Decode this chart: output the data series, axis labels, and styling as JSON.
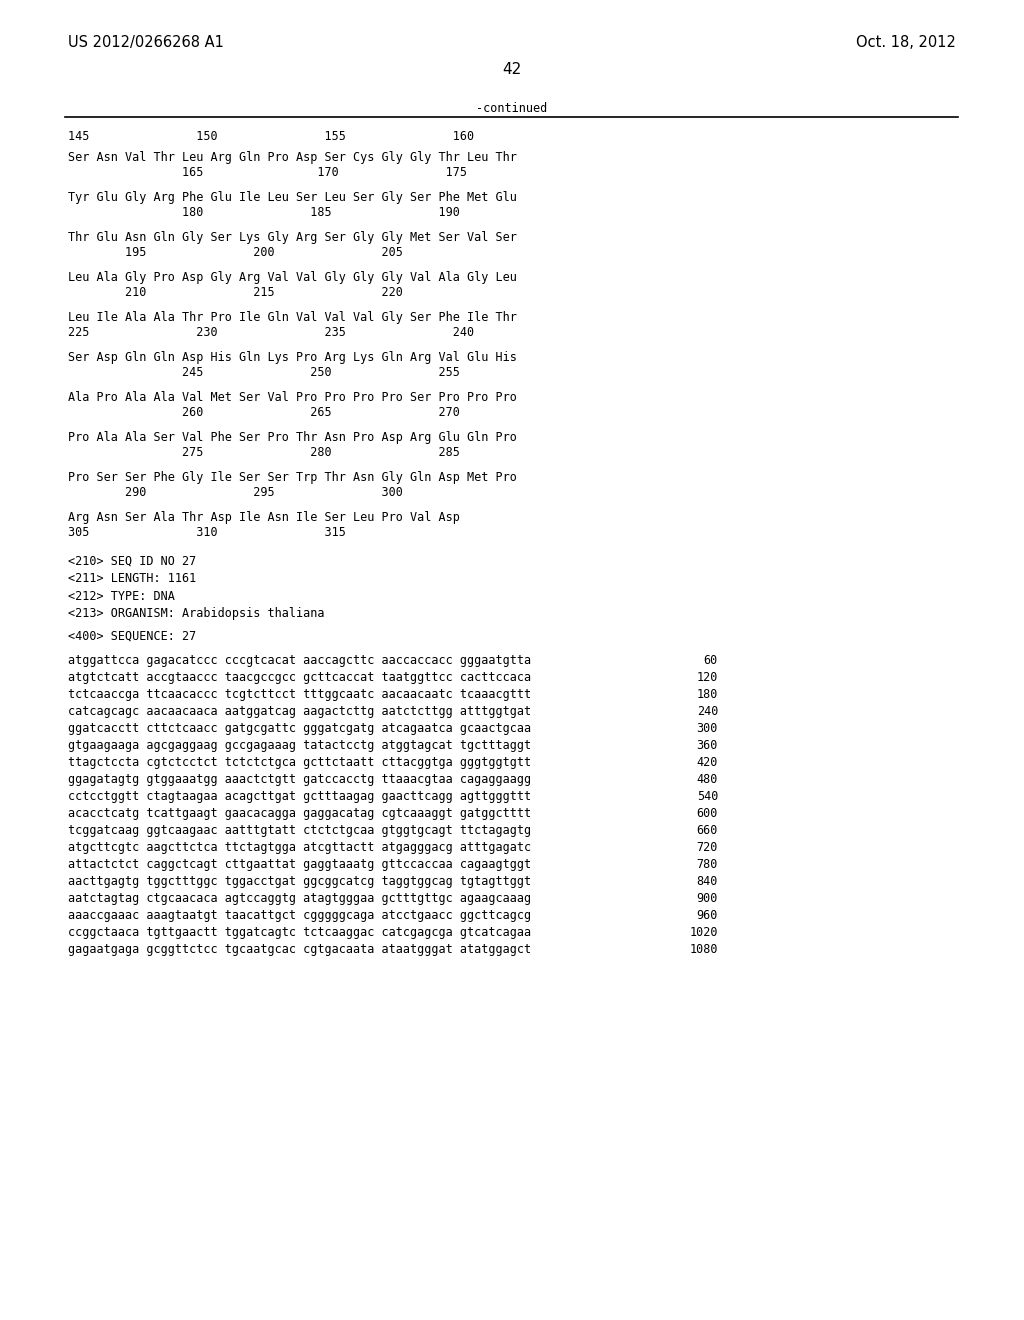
{
  "header_left": "US 2012/0266268 A1",
  "header_right": "Oct. 18, 2012",
  "page_number": "42",
  "continued_label": "-continued",
  "background_color": "#ffffff",
  "text_color": "#000000",
  "font_size_header": 10.5,
  "font_size_body": 8.5,
  "font_size_page": 11,
  "aa_number_line": "145               150               155               160",
  "aa_sequences": [
    {
      "seq": "Ser Asn Val Thr Leu Arg Gln Pro Asp Ser Cys Gly Gly Thr Leu Thr",
      "nums": "                165                170               175"
    },
    {
      "seq": "Tyr Glu Gly Arg Phe Glu Ile Leu Ser Leu Ser Gly Ser Phe Met Glu",
      "nums": "                180               185               190"
    },
    {
      "seq": "Thr Glu Asn Gln Gly Ser Lys Gly Arg Ser Gly Gly Met Ser Val Ser",
      "nums": "        195               200               205"
    },
    {
      "seq": "Leu Ala Gly Pro Asp Gly Arg Val Val Gly Gly Gly Val Ala Gly Leu",
      "nums": "        210               215               220"
    },
    {
      "seq": "Leu Ile Ala Ala Thr Pro Ile Gln Val Val Val Gly Ser Phe Ile Thr",
      "nums": "225               230               235               240"
    },
    {
      "seq": "Ser Asp Gln Gln Asp His Gln Lys Pro Arg Lys Gln Arg Val Glu His",
      "nums": "                245               250               255"
    },
    {
      "seq": "Ala Pro Ala Ala Val Met Ser Val Pro Pro Pro Pro Ser Pro Pro Pro",
      "nums": "                260               265               270"
    },
    {
      "seq": "Pro Ala Ala Ser Val Phe Ser Pro Thr Asn Pro Asp Arg Glu Gln Pro",
      "nums": "                275               280               285"
    },
    {
      "seq": "Pro Ser Ser Phe Gly Ile Ser Ser Trp Thr Asn Gly Gln Asp Met Pro",
      "nums": "        290               295               300"
    },
    {
      "seq": "Arg Asn Ser Ala Thr Asp Ile Asn Ile Ser Leu Pro Val Asp",
      "nums": "305               310               315"
    }
  ],
  "seq_info": [
    "<210> SEQ ID NO 27",
    "<211> LENGTH: 1161",
    "<212> TYPE: DNA",
    "<213> ORGANISM: Arabidopsis thaliana"
  ],
  "seq_label": "<400> SEQUENCE: 27",
  "dna_lines": [
    {
      "seq": "atggattcca gagacatccc cccgtcacat aaccagcttc aaccaccacc gggaatgtta",
      "num": "60"
    },
    {
      "seq": "atgtctcatt accgtaaccc taacgccgcc gcttcaccat taatggttcc cacttccaca",
      "num": "120"
    },
    {
      "seq": "tctcaaccga ttcaacaccc tcgtcttcct tttggcaatc aacaacaatc tcaaacgttt",
      "num": "180"
    },
    {
      "seq": "catcagcagc aacaacaaca aatggatcag aagactcttg aatctcttgg atttggtgat",
      "num": "240"
    },
    {
      "seq": "ggatcacctt cttctcaacc gatgcgattc gggatcgatg atcagaatca gcaactgcaa",
      "num": "300"
    },
    {
      "seq": "gtgaagaaga agcgaggaag gccgagaaag tatactcctg atggtagcat tgctttaggt",
      "num": "360"
    },
    {
      "seq": "ttagctccta cgtctcctct tctctctgca gcttctaatt cttacggtga gggtggtgtt",
      "num": "420"
    },
    {
      "seq": "ggagatagtg gtggaaatgg aaactctgtt gatccacctg ttaaacgtaa cagaggaagg",
      "num": "480"
    },
    {
      "seq": "cctcctggtt ctagtaagaa acagcttgat gctttaagag gaacttcagg agttgggttt",
      "num": "540"
    },
    {
      "seq": "acacctcatg tcattgaagt gaacacagga gaggacatag cgtcaaaggt gatggctttt",
      "num": "600"
    },
    {
      "seq": "tcggatcaag ggtcaagaac aatttgtatt ctctctgcaa gtggtgcagt ttctagagtg",
      "num": "660"
    },
    {
      "seq": "atgcttcgtc aagcttctca ttctagtgga atcgttactt atgagggacg atttgagatc",
      "num": "720"
    },
    {
      "seq": "attactctct caggctcagt cttgaattat gaggtaaatg gttccaccaa cagaagtggt",
      "num": "780"
    },
    {
      "seq": "aacttgagtg tggctttggc tggacctgat ggcggcatcg taggtggcag tgtagttggt",
      "num": "840"
    },
    {
      "seq": "aatctagtag ctgcaacaca agtccaggtg atagtgggaa gctttgttgc agaagcaaag",
      "num": "900"
    },
    {
      "seq": "aaaccgaaac aaagtaatgt taacattgct cgggggcaga atcctgaacc ggcttcagcg",
      "num": "960"
    },
    {
      "seq": "ccggctaaca tgttgaactt tggatcagtc tctcaaggac catcgagcga gtcatcagaa",
      "num": "1020"
    },
    {
      "seq": "gagaatgaga gcggttctcc tgcaatgcac cgtgacaata ataatgggat atatggagct",
      "num": "1080"
    }
  ]
}
